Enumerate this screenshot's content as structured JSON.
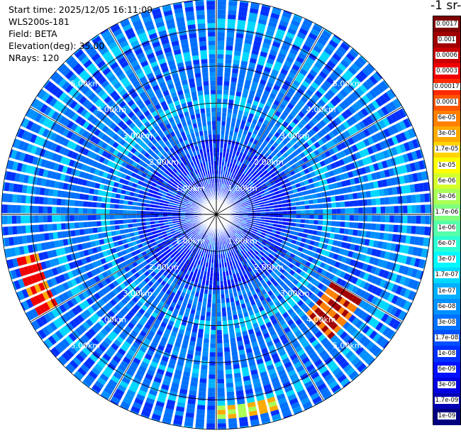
{
  "header": {
    "start_time": "Start time: 2025/12/05 16:11:09",
    "instrument": "WLS200s-181",
    "field": "Field: BETA",
    "elevation": "Elevation(deg): 35.00",
    "nrays": "NRays: 120"
  },
  "colorbar": {
    "unit_label": "-1 sr-",
    "ticks": [
      "0.0017",
      "0.001",
      "0.0006",
      "0.0003",
      "0.00017",
      "0.0001",
      "6e-05",
      "3e-05",
      "1.7e-05",
      "1e-05",
      "6e-06",
      "3e-06",
      "1.7e-06",
      "1e-06",
      "6e-07",
      "3e-07",
      "1.7e-07",
      "1e-07",
      "6e-08",
      "3e-08",
      "1.7e-08",
      "1e-08",
      "6e-09",
      "3e-09",
      "1.7e-09",
      "1e-09"
    ],
    "colors": [
      "#7f0000",
      "#a00000",
      "#c80000",
      "#f00000",
      "#ff2a00",
      "#ff5500",
      "#ff7f00",
      "#ffaa00",
      "#ffd400",
      "#ffff00",
      "#d4ff2a",
      "#aaff55",
      "#7fff7f",
      "#55ffaa",
      "#2affd4",
      "#00f8ff",
      "#00d8ff",
      "#00b0ff",
      "#0090ff",
      "#0070ff",
      "#0050ff",
      "#0030ff",
      "#0010ff",
      "#0000e0",
      "#0000b4",
      "#00007f"
    ]
  },
  "chart_data": {
    "type": "ppi",
    "field": "BETA",
    "elevation_deg": 35.0,
    "nrays": 120,
    "range_rings_km": [
      1.0,
      2.0,
      3.0,
      4.0,
      5.0
    ],
    "range_labels": [
      "1.00km",
      "2.00km",
      "3.00km",
      "4.00km",
      "5.00km"
    ],
    "max_range_km": 5.8,
    "colorscale": "log10 backscatter, 1e-09 to 0.0017",
    "features": [
      {
        "name": "strong return west",
        "azimuth_deg_from_north": 250,
        "range_km": [
          4.9,
          5.5
        ],
        "value": 0.0003
      },
      {
        "name": "strong return south-east",
        "azimuth_deg_from_north": 130,
        "range_km": [
          3.6,
          4.6
        ],
        "value": 0.0006
      },
      {
        "name": "moderate return south",
        "azimuth_deg_from_north": 170,
        "range_km": [
          5.2,
          5.5
        ],
        "value": 3e-05
      }
    ]
  }
}
